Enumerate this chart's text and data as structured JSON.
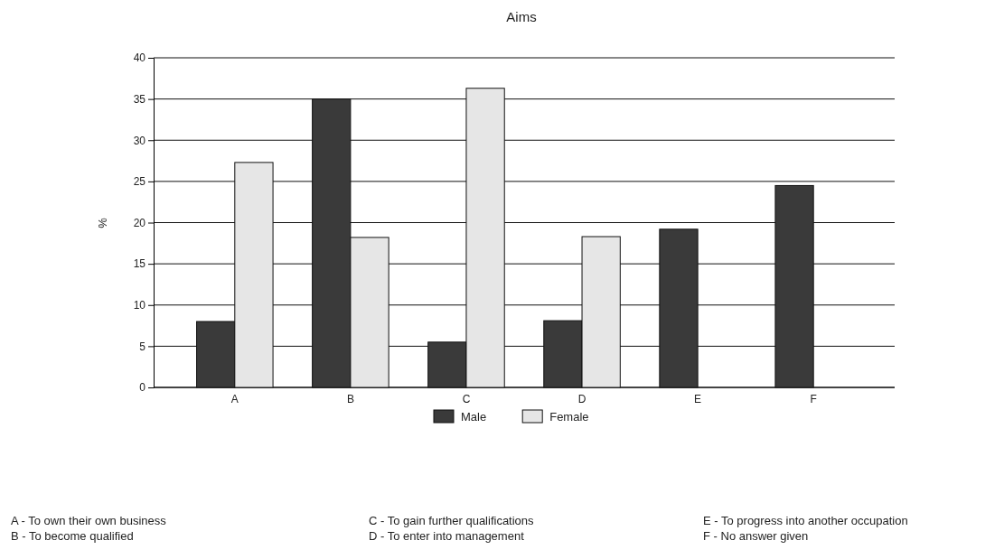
{
  "chart_data": {
    "type": "bar",
    "title": "Aims",
    "ylabel": "%",
    "categories": [
      "A",
      "B",
      "C",
      "D",
      "E",
      "F"
    ],
    "series": [
      {
        "name": "Male",
        "color": "#3a3a3a",
        "values": [
          8,
          35,
          5.5,
          8.1,
          19.2,
          24.5
        ]
      },
      {
        "name": "Female",
        "color": "#e6e6e6",
        "values": [
          27.3,
          18.2,
          36.3,
          18.3,
          null,
          null
        ]
      }
    ],
    "ylim": [
      0,
      40
    ],
    "yticks": [
      0,
      5,
      10,
      15,
      20,
      25,
      30,
      35,
      40
    ],
    "grid": "y",
    "legend": "bottom",
    "annotations": [
      "A - To own their own business",
      "B - To become qualified",
      "C - To gain further qualifications",
      "D - To enter into management",
      "E - To progress into another occupation",
      "F - No answer given"
    ]
  }
}
